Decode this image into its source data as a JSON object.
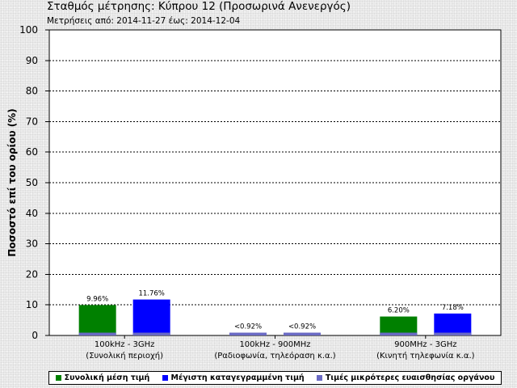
{
  "header": {
    "title": "Σταθμός μέτρησης: Κύπρου 12 (Προσωρινά Ανενεργός)",
    "subtitle": "Μετρήσεις από: 2014-11-27 έως: 2014-12-04"
  },
  "colors": {
    "average": "#008000",
    "maximum": "#0000ff",
    "below_sensitivity": "#6a6ac4"
  },
  "chart_data": {
    "type": "bar",
    "ylabel": "Ποσοστό επί του ορίου (%)",
    "ylim": [
      0,
      100
    ],
    "yticks": [
      "0",
      "10",
      "20",
      "30",
      "40",
      "50",
      "60",
      "70",
      "80",
      "90",
      "100"
    ],
    "grid": true,
    "legend_position": "bottom",
    "categories": [
      {
        "line1": "100kHz - 3GHz",
        "line2": "(Συνολική περιοχή)"
      },
      {
        "line1": "100kHz - 900MHz",
        "line2": "(Ραδιοφωνία, τηλεόραση κ.α.)"
      },
      {
        "line1": "900MHz - 3GHz",
        "line2": "(Κινητή τηλεφωνία κ.α.)"
      }
    ],
    "series": [
      {
        "name": "Συνολική μέση τιμή",
        "values": [
          9.96,
          null,
          6.2
        ],
        "labels": [
          "9.96%",
          "<0.92%",
          "6.20%"
        ]
      },
      {
        "name": "Μέγιστη καταγεγραμμένη τιμή",
        "values": [
          11.76,
          null,
          7.18
        ],
        "labels": [
          "11.76%",
          "<0.92%",
          "7.18%"
        ]
      }
    ],
    "sensitivity_threshold": 0.92,
    "sensitivity_name": "Τιμές μικρότερες ευαισθησίας οργάνου"
  }
}
